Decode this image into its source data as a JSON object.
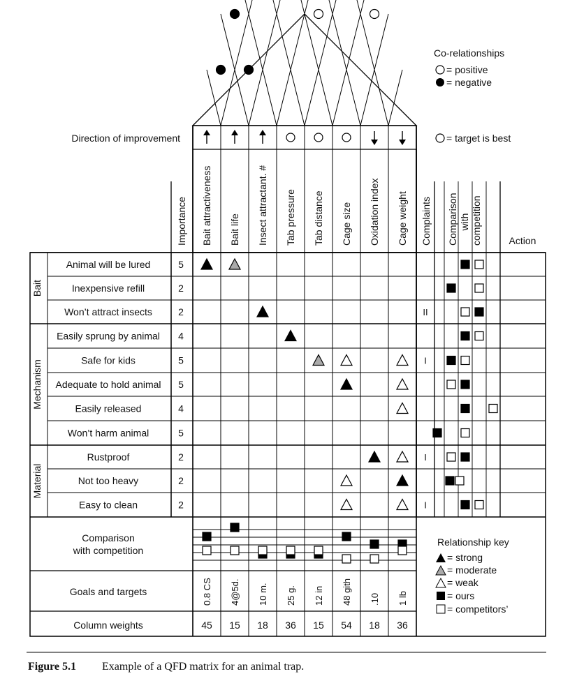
{
  "legend": {
    "corel_title": "Co-relationships",
    "positive": "= positive",
    "negative": "= negative",
    "target": "= target is best",
    "rel_title": "Relationship key",
    "strong": "= strong",
    "moderate": "= moderate",
    "weak": "= weak",
    "ours": "= ours",
    "competitors": "= competitors’"
  },
  "headers": {
    "direction": "Direction of improvement",
    "importance": "Importance",
    "complaints": "Complaints",
    "comparison_lines": [
      "Comparison",
      "with",
      "competition"
    ],
    "action": "Action"
  },
  "columns": [
    {
      "name": "Bait attractiveness",
      "direction": "up",
      "goal": "0.8 CS",
      "weight": "45"
    },
    {
      "name": "Bait life",
      "direction": "up",
      "goal": "4@5d.",
      "weight": "15"
    },
    {
      "name": "Insect attractant. #",
      "direction": "up",
      "goal": "10 m.",
      "weight": "18"
    },
    {
      "name": "Tab pressure",
      "direction": "target",
      "goal": "25 g.",
      "weight": "36"
    },
    {
      "name": "Tab distance",
      "direction": "target",
      "goal": "12 in",
      "weight": "15"
    },
    {
      "name": "Cage size",
      "direction": "target",
      "goal": "48 gith",
      "weight": "54"
    },
    {
      "name": "Oxidation index",
      "direction": "down",
      "goal": ".10",
      "weight": "18"
    },
    {
      "name": "Cage weight",
      "direction": "down",
      "goal": "1 lb",
      "weight": "36"
    }
  ],
  "groups": [
    {
      "name": "Bait",
      "rows": 3
    },
    {
      "name": "Mechanism",
      "rows": 5
    },
    {
      "name": "Material",
      "rows": 3
    }
  ],
  "rows": [
    {
      "label": "Animal will be lured",
      "importance": "5",
      "complaints": "",
      "rel": {
        "0": "strong",
        "1": "moderate"
      },
      "ours": 3,
      "comp": 4
    },
    {
      "label": "Inexpensive refill",
      "importance": "2",
      "complaints": "",
      "rel": {},
      "ours": 2,
      "comp": 4
    },
    {
      "label": "Won’t attract insects",
      "importance": "2",
      "complaints": "II",
      "rel": {
        "2": "strong"
      },
      "ours": 4,
      "comp": 3
    },
    {
      "label": "Easily sprung by animal",
      "importance": "4",
      "complaints": "",
      "rel": {
        "3": "strong"
      },
      "ours": 3,
      "comp": 4
    },
    {
      "label": "Safe for kids",
      "importance": "5",
      "complaints": "I",
      "rel": {
        "4": "moderate",
        "5": "weak",
        "7": "weak"
      },
      "ours": 2,
      "comp": 3
    },
    {
      "label": "Adequate to hold animal",
      "importance": "5",
      "complaints": "",
      "rel": {
        "5": "strong",
        "7": "weak"
      },
      "ours": 3,
      "comp": 2
    },
    {
      "label": "Easily released",
      "importance": "4",
      "complaints": "",
      "rel": {
        "7": "weak"
      },
      "ours": 3,
      "comp": 5
    },
    {
      "label": "Won’t harm animal",
      "importance": "5",
      "complaints": "",
      "rel": {},
      "ours": 1,
      "comp": 3
    },
    {
      "label": "Rustproof",
      "importance": "2",
      "complaints": "I",
      "rel": {
        "6": "strong",
        "7": "weak"
      },
      "ours": 3,
      "comp": 2
    },
    {
      "label": "Not too heavy",
      "importance": "2",
      "complaints": "",
      "rel": {
        "5": "weak",
        "7": "strong"
      },
      "ours": 2,
      "comp": 2.4
    },
    {
      "label": "Easy to clean",
      "importance": "2",
      "complaints": "I",
      "rel": {
        "5": "weak",
        "7": "weak"
      },
      "ours": 3,
      "comp": 4
    }
  ],
  "roof": [
    {
      "a": 0,
      "b": 1,
      "type": "negative"
    },
    {
      "a": 1,
      "b": 2,
      "type": "negative"
    },
    {
      "a": 0,
      "b": 2,
      "type": "negative"
    },
    {
      "a": 3,
      "b": 5,
      "type": "positive"
    },
    {
      "a": 5,
      "b": 7,
      "type": "positive"
    }
  ],
  "bottom": {
    "comparison_lines": [
      "Comparison",
      "with competition"
    ],
    "goals_label": "Goals and targets",
    "weights_label": "Column weights",
    "comparison": [
      {
        "ours": 2,
        "comp": 1
      },
      {
        "ours": 3,
        "comp": 1
      },
      {
        "ours": 0,
        "comp": 1
      },
      {
        "ours": 0,
        "comp": 1
      },
      {
        "ours": 0,
        "comp": 1
      },
      {
        "ours": 2,
        "comp": 0
      },
      {
        "ours": 1,
        "comp": 0
      },
      {
        "ours": 1,
        "comp": 1
      }
    ]
  },
  "caption": {
    "number": "Figure 5.1",
    "text": "Example of a QFD matrix for an animal trap."
  }
}
